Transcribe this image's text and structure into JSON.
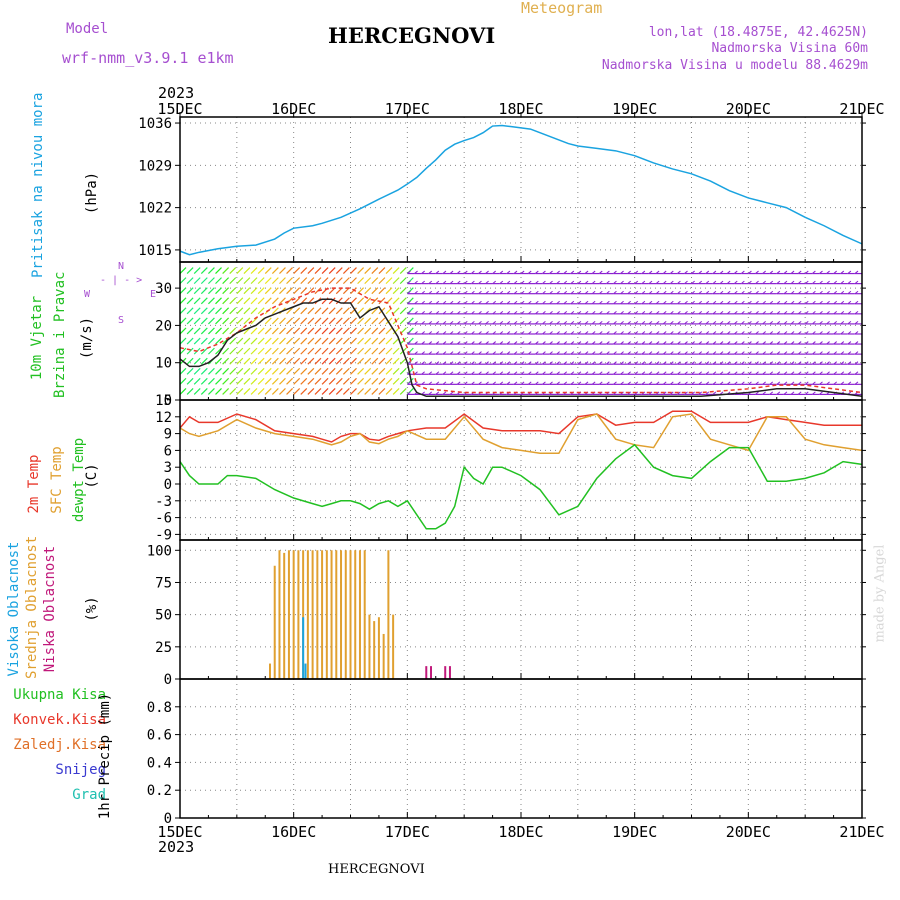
{
  "header": {
    "model_label": "Model",
    "model_name": "wrf-nmm_v3.9.1  e1km",
    "station_title": "HERCEGNOVI",
    "meteogram_label": "Meteogram",
    "lonlat": "lon,lat (18.4875E, 42.4625N)",
    "elevation": "Nadmorska Visina 60m",
    "model_elevation": "Nadmorska Visina u modelu 88.4629m",
    "footer_station": "HERCEGNOVI",
    "credit": "made by Angel"
  },
  "time_axis": {
    "year_top": "2023",
    "year_bottom": "2023",
    "tick_labels": [
      "15DEC",
      "16DEC",
      "17DEC",
      "18DEC",
      "19DEC",
      "20DEC",
      "21DEC"
    ]
  },
  "panel_labels": {
    "pressure": {
      "main": "Pritisak na nivou mora",
      "unit": "(hPa)"
    },
    "wind": {
      "line1": "10m Vjetar",
      "line2": "Brzina i Pravac",
      "unit": "(m/s)",
      "compass_w": "W",
      "compass_e": "E",
      "compass_n": "N",
      "compass_s": "S"
    },
    "temp": {
      "t2m": "2m Temp",
      "sfc": "SFC Temp",
      "dewpt": "dewpt Temp",
      "unit": "(C)"
    },
    "cloud": {
      "high": "Visoka Oblacnost",
      "mid": "Srednja Oblacnost",
      "low": "Niska Oblacnost",
      "unit": "(%)"
    },
    "precip": {
      "total": "Ukupna Kisa",
      "conv": "Konvek.Kisa",
      "grid": "Zaledj.Kisa",
      "snow": "Snijeg",
      "hail": "Grad",
      "unit": "1hr Precip (mm)"
    }
  },
  "colors": {
    "pressure": "#1aa3e0",
    "t2m": "#e8382b",
    "sfc": "#e0a030",
    "dewpt": "#22c022",
    "cloud_mid": "#e0a030",
    "cloud_high": "#1aa3e0",
    "cloud_low": "#c0187a",
    "wind_barb": "#8a1fd0",
    "wind_gust": "#e8382b",
    "wind_speed": "#222222",
    "title_purple": "#a64fd0",
    "precip_total": "#22c022",
    "precip_conv": "#e8382b",
    "precip_grid": "#e07028",
    "precip_snow": "#3a3ad0",
    "precip_hail": "#20c0b0"
  },
  "chart_data": [
    {
      "type": "line",
      "name": "pressure",
      "ylabel": "(hPa)",
      "ylim": [
        1013,
        1037
      ],
      "yticks": [
        1015,
        1022,
        1029,
        1036
      ],
      "xlim": [
        0,
        144
      ],
      "x_unit": "hours since 15DEC 00",
      "series": [
        {
          "name": "Pritisak na nivou mora",
          "x": [
            0,
            2,
            4,
            8,
            12,
            16,
            20,
            22,
            24,
            28,
            30,
            34,
            38,
            42,
            46,
            48,
            50,
            52,
            54,
            56,
            58,
            60,
            62,
            64,
            66,
            68,
            70,
            72,
            74,
            76,
            78,
            80,
            82,
            84,
            88,
            92,
            96,
            100,
            104,
            108,
            112,
            116,
            120,
            124,
            128,
            132,
            136,
            140,
            144
          ],
          "values": [
            1014.8,
            1014.2,
            1014.6,
            1015.2,
            1015.6,
            1015.8,
            1016.8,
            1017.8,
            1018.6,
            1019.0,
            1019.4,
            1020.4,
            1021.8,
            1023.4,
            1024.9,
            1025.9,
            1027.0,
            1028.5,
            1029.9,
            1031.5,
            1032.5,
            1033.1,
            1033.6,
            1034.4,
            1035.5,
            1035.6,
            1035.4,
            1035.2,
            1035.0,
            1034.4,
            1033.8,
            1033.2,
            1032.6,
            1032.2,
            1031.8,
            1031.4,
            1030.6,
            1029.4,
            1028.4,
            1027.6,
            1026.4,
            1024.8,
            1023.6,
            1022.8,
            1022.0,
            1020.4,
            1019.0,
            1017.4,
            1016.0
          ]
        }
      ]
    },
    {
      "type": "line",
      "name": "wind",
      "ylabel": "(m/s)",
      "ylim": [
        0,
        37
      ],
      "yticks": [
        0,
        10,
        20,
        30
      ],
      "xlim": [
        0,
        144
      ],
      "series": [
        {
          "name": "speed",
          "x": [
            0,
            2,
            4,
            6,
            8,
            10,
            12,
            14,
            16,
            18,
            20,
            22,
            24,
            26,
            28,
            30,
            32,
            34,
            36,
            38,
            40,
            42,
            44,
            46,
            48,
            49,
            50,
            52,
            54,
            56,
            60,
            70,
            80,
            90,
            100,
            110,
            120,
            126,
            132,
            138,
            144
          ],
          "values": [
            11,
            9,
            9,
            10,
            12,
            16,
            18,
            19,
            20,
            22,
            23,
            24,
            25,
            26,
            26,
            27,
            27,
            26,
            26,
            22,
            24,
            25,
            21,
            17,
            10,
            4,
            2,
            1,
            1,
            1,
            1,
            1,
            1,
            1,
            1,
            1,
            2,
            3,
            3,
            2,
            1
          ]
        },
        {
          "name": "gust",
          "x": [
            0,
            4,
            8,
            12,
            16,
            20,
            24,
            28,
            32,
            36,
            40,
            44,
            48,
            50,
            52,
            60,
            80,
            100,
            110,
            120,
            126,
            132,
            138,
            144
          ],
          "values": [
            14,
            13,
            15,
            18,
            22,
            25,
            27,
            29,
            30,
            30,
            27,
            26,
            14,
            4,
            3,
            2,
            2,
            2,
            2,
            3,
            4,
            4,
            3,
            2
          ]
        }
      ]
    },
    {
      "type": "line",
      "name": "temperature",
      "ylabel": "(C)",
      "ylim": [
        -10,
        15
      ],
      "yticks": [
        -9,
        -6,
        -3,
        0,
        3,
        6,
        9,
        12,
        15
      ],
      "xlim": [
        0,
        144
      ],
      "series": [
        {
          "name": "2m Temp",
          "x": [
            0,
            2,
            4,
            8,
            12,
            16,
            20,
            24,
            28,
            30,
            32,
            34,
            36,
            38,
            40,
            42,
            44,
            46,
            48,
            52,
            56,
            60,
            64,
            68,
            72,
            76,
            80,
            84,
            88,
            92,
            96,
            100,
            104,
            108,
            112,
            116,
            120,
            124,
            128,
            132,
            136,
            140,
            144
          ],
          "values": [
            10.0,
            12.0,
            11.0,
            11.0,
            12.5,
            11.5,
            9.5,
            9.0,
            8.5,
            8.0,
            7.5,
            8.5,
            9.0,
            9.0,
            8.0,
            7.8,
            8.5,
            9.0,
            9.5,
            10.0,
            10.0,
            12.5,
            10.0,
            9.5,
            9.5,
            9.5,
            9.0,
            12.0,
            12.5,
            10.5,
            11.0,
            11.0,
            13.0,
            13.0,
            11.0,
            11.0,
            11.0,
            12.0,
            11.5,
            11.0,
            10.5,
            10.5,
            10.5
          ]
        },
        {
          "name": "SFC Temp",
          "x": [
            0,
            2,
            4,
            8,
            12,
            16,
            20,
            24,
            28,
            30,
            32,
            34,
            36,
            38,
            40,
            42,
            44,
            46,
            48,
            52,
            56,
            60,
            64,
            68,
            72,
            76,
            80,
            84,
            88,
            92,
            96,
            100,
            104,
            108,
            112,
            116,
            120,
            124,
            128,
            132,
            136,
            140,
            144
          ],
          "values": [
            10.0,
            9.0,
            8.5,
            9.5,
            11.5,
            10.0,
            9.0,
            8.5,
            8.0,
            7.5,
            7.0,
            7.5,
            8.5,
            9.0,
            7.5,
            7.2,
            8.0,
            8.5,
            9.5,
            8.0,
            8.0,
            12.0,
            8.0,
            6.5,
            6.0,
            5.5,
            5.5,
            11.5,
            12.5,
            8.0,
            7.0,
            6.5,
            12.0,
            12.5,
            8.0,
            7.0,
            6.0,
            12.0,
            12.0,
            8.0,
            7.0,
            6.5,
            6.0
          ]
        },
        {
          "name": "dewpt Temp",
          "x": [
            0,
            2,
            4,
            8,
            10,
            12,
            16,
            20,
            24,
            28,
            30,
            32,
            34,
            36,
            38,
            40,
            42,
            44,
            46,
            48,
            50,
            52,
            54,
            56,
            58,
            60,
            62,
            64,
            66,
            68,
            72,
            76,
            80,
            84,
            88,
            92,
            96,
            100,
            104,
            108,
            112,
            116,
            120,
            124,
            128,
            132,
            136,
            140,
            144
          ],
          "values": [
            4.0,
            1.5,
            0.0,
            0.0,
            1.5,
            1.5,
            1.0,
            -1.0,
            -2.5,
            -3.5,
            -4.0,
            -3.5,
            -3.0,
            -3.0,
            -3.5,
            -4.5,
            -3.5,
            -3.0,
            -4.0,
            -3.0,
            -5.5,
            -8.0,
            -8.0,
            -7.0,
            -4.0,
            3.0,
            1.0,
            0.0,
            3.0,
            3.0,
            1.5,
            -1.0,
            -5.5,
            -4.0,
            1.0,
            4.5,
            7.0,
            3.0,
            1.5,
            1.0,
            4.0,
            6.5,
            6.5,
            0.5,
            0.5,
            1.0,
            2.0,
            4.0,
            3.5
          ]
        }
      ]
    },
    {
      "type": "bar",
      "name": "cloud",
      "ylabel": "(%)",
      "ylim": [
        0,
        108
      ],
      "yticks": [
        0,
        25,
        50,
        75,
        100
      ],
      "xlim": [
        0,
        144
      ],
      "series": [
        {
          "name": "Srednja Oblacnost",
          "x": [
            19,
            20,
            21,
            22,
            23,
            24,
            25,
            26,
            27,
            28,
            29,
            30,
            31,
            32,
            33,
            34,
            35,
            36,
            37,
            38,
            39,
            40,
            41,
            42,
            43,
            44,
            45,
            46
          ],
          "values": [
            12,
            88,
            100,
            98,
            100,
            100,
            100,
            100,
            100,
            100,
            100,
            100,
            100,
            100,
            100,
            100,
            100,
            100,
            100,
            100,
            100,
            50,
            45,
            48,
            35,
            100,
            50,
            0
          ]
        },
        {
          "name": "Visoka Oblacnost",
          "x": [
            26,
            26.5
          ],
          "values": [
            48,
            12
          ]
        },
        {
          "name": "Niska Oblacnost",
          "x": [
            52,
            53,
            56,
            57
          ],
          "values": [
            10,
            10,
            10,
            10
          ]
        }
      ]
    },
    {
      "type": "line",
      "name": "precipitation",
      "ylabel": "1hr Precip (mm)",
      "ylim": [
        0,
        1.0
      ],
      "yticks": [
        0,
        0.2,
        0.4,
        0.6,
        0.8
      ],
      "xlim": [
        0,
        144
      ],
      "series": [
        {
          "name": "Ukupna Kisa",
          "x": [
            0,
            144
          ],
          "values": [
            0,
            0
          ]
        }
      ]
    }
  ]
}
